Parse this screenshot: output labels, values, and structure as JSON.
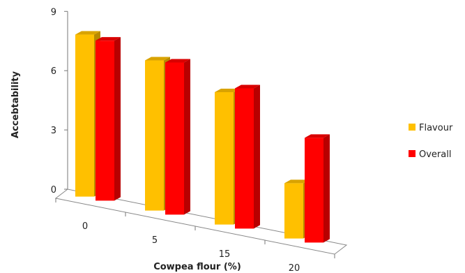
{
  "chart_data": {
    "type": "bar",
    "title": "",
    "xlabel": "Cowpea flour (%)",
    "ylabel": "Accebtability",
    "categories": [
      "0",
      "5",
      "15",
      "20"
    ],
    "yticks": [
      "0",
      "3",
      "6",
      "9"
    ],
    "ylim": [
      0,
      9
    ],
    "grid": false,
    "legend_position": "right",
    "series": [
      {
        "name": "Flavour",
        "values": [
          8.2,
          7.6,
          6.7,
          2.8
        ],
        "color": "#FFC000"
      },
      {
        "name": "Overall",
        "values": [
          8.1,
          7.7,
          7.1,
          5.3
        ],
        "color": "#FF0000"
      }
    ]
  }
}
